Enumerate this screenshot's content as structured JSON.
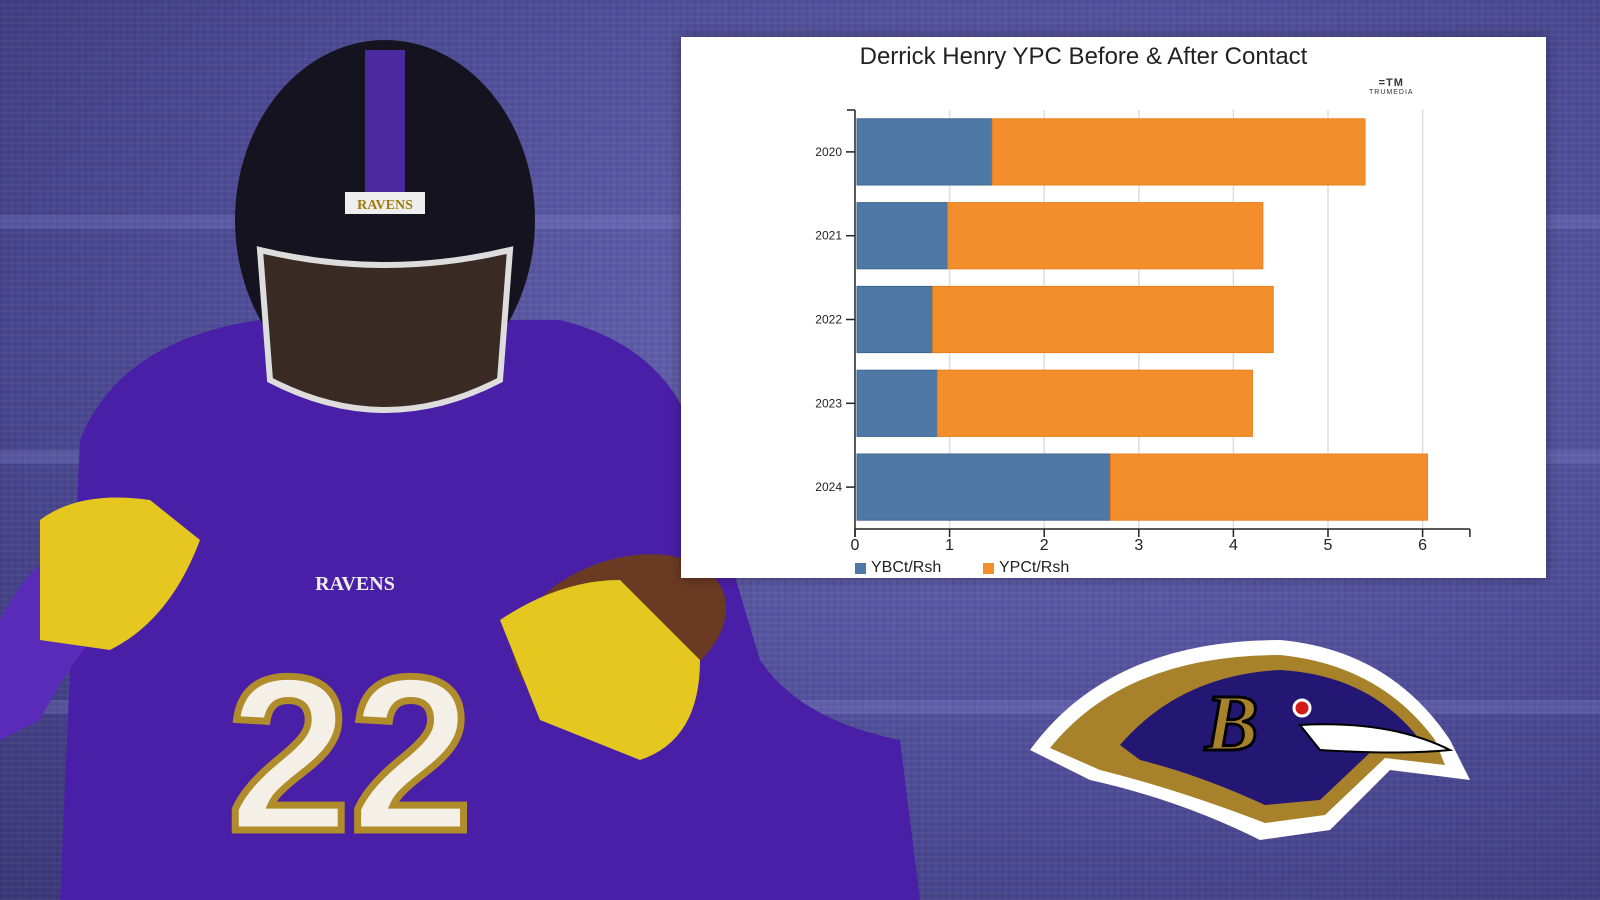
{
  "chart_data": {
    "type": "bar",
    "orientation": "horizontal",
    "stacked": true,
    "title": "Derrick Henry YPC Before & After Contact",
    "categories": [
      "2020",
      "2021",
      "2022",
      "2023",
      "2024"
    ],
    "series": [
      {
        "name": "YBCt/Rsh",
        "color": "#4e79a7",
        "values": [
          1.43,
          0.96,
          0.8,
          0.85,
          2.68
        ]
      },
      {
        "name": "YPCt/Rsh",
        "color": "#f28e2b",
        "values": [
          3.94,
          3.33,
          3.6,
          3.33,
          3.35
        ]
      }
    ],
    "xlim": [
      0,
      6.5
    ],
    "xticks": [
      "0",
      "1",
      "2",
      "3",
      "4",
      "5",
      "6"
    ],
    "xlabel": "",
    "ylabel": "",
    "grid": "vertical",
    "legend_position": "bottom-left"
  },
  "branding": {
    "source_logo": "TRUMEDIA"
  },
  "background": {
    "team": "Baltimore Ravens",
    "jersey_number": "22",
    "jersey_text": "RAVENS",
    "primary": "#4b4a9a",
    "gold": "#9e7c0c"
  }
}
